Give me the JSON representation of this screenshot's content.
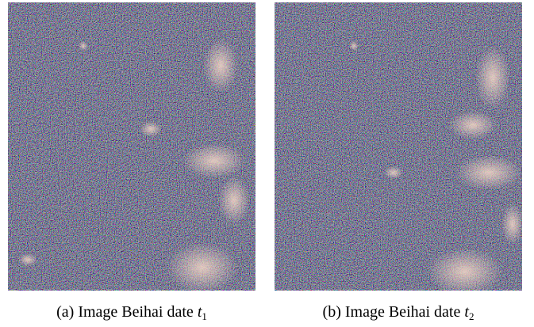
{
  "figures": [
    {
      "label": "(a)",
      "text": "Image Beihai date",
      "math_symbol": "t",
      "math_subscript": "1"
    },
    {
      "label": "(b)",
      "text": "Image Beihai date",
      "math_symbol": "t",
      "math_subscript": "2"
    }
  ],
  "colors": {
    "background": "#ffffff",
    "image_base": "#1d1f2e",
    "noise_palette": [
      "#5b2a6e",
      "#2f6b3a",
      "#3a3fa0",
      "#7a2f3a",
      "#2d7a7a",
      "#6b6b2a",
      "#9a8fb0"
    ],
    "bright_region": "#e8c8b8"
  }
}
